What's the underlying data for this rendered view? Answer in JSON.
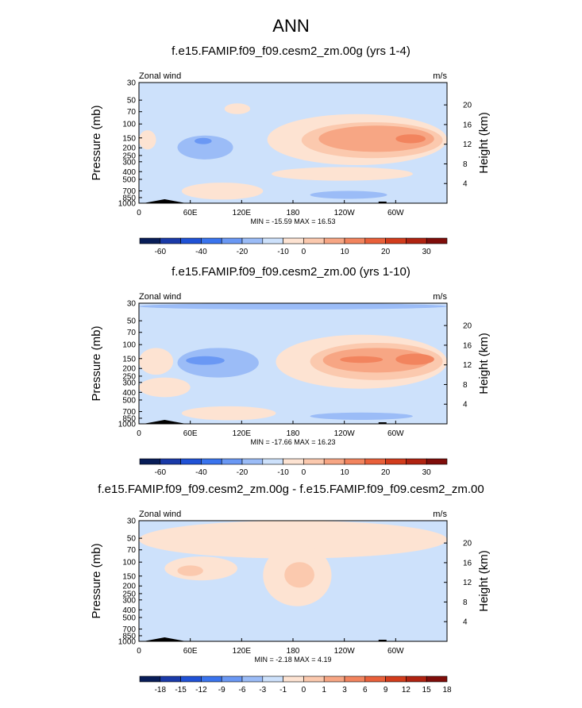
{
  "page_title": "ANN",
  "colors": {
    "neg": [
      "#081d58",
      "#1a3aa8",
      "#2052d6",
      "#3a74ee",
      "#6a98f4",
      "#9bbcf7",
      "#cde1fb"
    ],
    "pos": [
      "#fde3d2",
      "#fbc9ae",
      "#f7a684",
      "#f2845e",
      "#e9603a",
      "#d23c1c",
      "#b02311",
      "#7f0d0a"
    ],
    "land": "#000000"
  },
  "chart_data": [
    {
      "type": "contour",
      "title": "f.e15.FAMIP.f09_f09.cesm2_zm.00g (yrs 1-4)",
      "left_label": "Zonal wind",
      "right_label": "m/s",
      "ylabel": "Pressure (mb)",
      "y2label": "Height (km)",
      "y_ticks": [
        "30",
        "50",
        "70",
        "100",
        "150",
        "200",
        "250",
        "300",
        "400",
        "500",
        "700",
        "850",
        "1000"
      ],
      "y_tick_values": [
        30,
        50,
        70,
        100,
        150,
        200,
        250,
        300,
        400,
        500,
        700,
        850,
        1000
      ],
      "y2_ticks": [
        "20",
        "16",
        "12",
        "8",
        "4"
      ],
      "y2_tick_values": [
        20,
        16,
        12,
        8,
        4
      ],
      "x_ticks": [
        "0",
        "60E",
        "120E",
        "180",
        "120W",
        "60W"
      ],
      "x_tick_values": [
        0,
        60,
        120,
        180,
        240,
        300
      ],
      "xlim": [
        0,
        360
      ],
      "ylim": [
        1000,
        30
      ],
      "stats": "MIN = -15.59  MAX =  16.53",
      "colorbar_labels": [
        "-60",
        "-40",
        "-20",
        "-10",
        "0",
        "10",
        "20",
        "30"
      ],
      "colorbar_label_index": [
        1,
        3,
        5,
        7,
        8,
        10,
        12,
        14
      ],
      "fields": [
        {
          "sign": "pos",
          "level": 1,
          "lon": [
            0,
            20
          ],
          "p": [
            120,
            210
          ]
        },
        {
          "sign": "pos",
          "level": 1,
          "lon": [
            150,
            360
          ],
          "p": [
            75,
            330
          ]
        },
        {
          "sign": "pos",
          "level": 2,
          "lon": [
            190,
            355
          ],
          "p": [
            95,
            270
          ]
        },
        {
          "sign": "pos",
          "level": 3,
          "lon": [
            210,
            345
          ],
          "p": [
            105,
            225
          ]
        },
        {
          "sign": "pos",
          "level": 4,
          "lon": [
            300,
            335
          ],
          "p": [
            135,
            175
          ]
        },
        {
          "sign": "pos",
          "level": 1,
          "lon": [
            50,
            145
          ],
          "p": [
            550,
            900
          ]
        },
        {
          "sign": "pos",
          "level": 1,
          "lon": [
            155,
            320
          ],
          "p": [
            350,
            520
          ]
        },
        {
          "sign": "neg",
          "level": 2,
          "lon": [
            45,
            110
          ],
          "p": [
            140,
            280
          ]
        },
        {
          "sign": "neg",
          "level": 3,
          "lon": [
            65,
            85
          ],
          "p": [
            150,
            180
          ]
        },
        {
          "sign": "neg",
          "level": 2,
          "lon": [
            200,
            290
          ],
          "p": [
            700,
            880
          ]
        },
        {
          "sign": "pos",
          "level": 1,
          "lon": [
            100,
            130
          ],
          "p": [
            55,
            75
          ]
        }
      ]
    },
    {
      "type": "contour",
      "title": "f.e15.FAMIP.f09_f09.cesm2_zm.00 (yrs 1-10)",
      "left_label": "Zonal wind",
      "right_label": "m/s",
      "ylabel": "Pressure (mb)",
      "y2label": "Height (km)",
      "y_ticks": [
        "30",
        "50",
        "70",
        "100",
        "150",
        "200",
        "250",
        "300",
        "400",
        "500",
        "700",
        "850",
        "1000"
      ],
      "y_tick_values": [
        30,
        50,
        70,
        100,
        150,
        200,
        250,
        300,
        400,
        500,
        700,
        850,
        1000
      ],
      "y2_ticks": [
        "20",
        "16",
        "12",
        "8",
        "4"
      ],
      "y2_tick_values": [
        20,
        16,
        12,
        8,
        4
      ],
      "x_ticks": [
        "0",
        "60E",
        "120E",
        "180",
        "120W",
        "60W"
      ],
      "x_tick_values": [
        0,
        60,
        120,
        180,
        240,
        300
      ],
      "xlim": [
        0,
        360
      ],
      "ylim": [
        1000,
        30
      ],
      "stats": "MIN = -17.66  MAX =  16.23",
      "colorbar_labels": [
        "-60",
        "-40",
        "-20",
        "-10",
        "0",
        "10",
        "20",
        "30"
      ],
      "colorbar_label_index": [
        1,
        3,
        5,
        7,
        8,
        10,
        12,
        14
      ],
      "fields": [
        {
          "sign": "neg",
          "level": 2,
          "lon": [
            0,
            360
          ],
          "p": [
            30,
            36
          ]
        },
        {
          "sign": "pos",
          "level": 1,
          "lon": [
            0,
            40
          ],
          "p": [
            110,
            240
          ]
        },
        {
          "sign": "pos",
          "level": 1,
          "lon": [
            160,
            360
          ],
          "p": [
            75,
            360
          ]
        },
        {
          "sign": "pos",
          "level": 2,
          "lon": [
            200,
            355
          ],
          "p": [
            95,
            280
          ]
        },
        {
          "sign": "pos",
          "level": 3,
          "lon": [
            215,
            340
          ],
          "p": [
            110,
            225
          ]
        },
        {
          "sign": "pos",
          "level": 4,
          "lon": [
            235,
            285
          ],
          "p": [
            140,
            170
          ]
        },
        {
          "sign": "pos",
          "level": 4,
          "lon": [
            300,
            345
          ],
          "p": [
            130,
            180
          ]
        },
        {
          "sign": "neg",
          "level": 2,
          "lon": [
            45,
            140
          ],
          "p": [
            110,
            260
          ]
        },
        {
          "sign": "neg",
          "level": 3,
          "lon": [
            55,
            100
          ],
          "p": [
            140,
            180
          ]
        },
        {
          "sign": "pos",
          "level": 1,
          "lon": [
            0,
            60
          ],
          "p": [
            260,
            460
          ]
        },
        {
          "sign": "pos",
          "level": 1,
          "lon": [
            50,
            160
          ],
          "p": [
            600,
            900
          ]
        },
        {
          "sign": "neg",
          "level": 2,
          "lon": [
            200,
            320
          ],
          "p": [
            720,
            890
          ]
        }
      ]
    },
    {
      "type": "contour",
      "title": "f.e15.FAMIP.f09_f09.cesm2_zm.00g - f.e15.FAMIP.f09_f09.cesm2_zm.00",
      "left_label": "Zonal wind",
      "right_label": "m/s",
      "ylabel": "Pressure (mb)",
      "y2label": "Height (km)",
      "y_ticks": [
        "30",
        "50",
        "70",
        "100",
        "150",
        "200",
        "250",
        "300",
        "400",
        "500",
        "700",
        "850",
        "1000"
      ],
      "y_tick_values": [
        30,
        50,
        70,
        100,
        150,
        200,
        250,
        300,
        400,
        500,
        700,
        850,
        1000
      ],
      "y2_ticks": [
        "20",
        "16",
        "12",
        "8",
        "4"
      ],
      "y2_tick_values": [
        20,
        16,
        12,
        8,
        4
      ],
      "x_ticks": [
        "0",
        "60E",
        "120E",
        "180",
        "120W",
        "60W"
      ],
      "x_tick_values": [
        0,
        60,
        120,
        180,
        240,
        300
      ],
      "xlim": [
        0,
        360
      ],
      "ylim": [
        1000,
        30
      ],
      "stats": "MIN = -2.18  MAX =  4.19",
      "colorbar_labels": [
        "-18",
        "-15",
        "-12",
        "-9",
        "-6",
        "-3",
        "-1",
        "0",
        "1",
        "3",
        "6",
        "9",
        "12",
        "15",
        "18"
      ],
      "colorbar_label_index": [
        1,
        2,
        3,
        4,
        5,
        6,
        7,
        8,
        9,
        10,
        11,
        12,
        13,
        14,
        15
      ],
      "fields": [
        {
          "sign": "pos",
          "level": 1,
          "lon": [
            0,
            360
          ],
          "p": [
            30,
            90
          ]
        },
        {
          "sign": "pos",
          "level": 1,
          "lon": [
            30,
            115
          ],
          "p": [
            85,
            170
          ]
        },
        {
          "sign": "pos",
          "level": 2,
          "lon": [
            45,
            75
          ],
          "p": [
            110,
            150
          ]
        },
        {
          "sign": "pos",
          "level": 1,
          "lon": [
            145,
            225
          ],
          "p": [
            60,
            360
          ]
        },
        {
          "sign": "pos",
          "level": 2,
          "lon": [
            170,
            205
          ],
          "p": [
            100,
            210
          ]
        },
        {
          "sign": "neg",
          "level": 1,
          "lon": [
            10,
            55
          ],
          "p": [
            180,
            420
          ]
        },
        {
          "sign": "neg",
          "level": 1,
          "lon": [
            235,
            275
          ],
          "p": [
            160,
            470
          ]
        },
        {
          "sign": "neg",
          "level": 1,
          "lon": [
            310,
            345
          ],
          "p": [
            180,
            450
          ]
        },
        {
          "sign": "neg",
          "level": 1,
          "lon": [
            80,
            150
          ],
          "p": [
            420,
            620
          ]
        },
        {
          "sign": "neg",
          "level": 1,
          "lon": [
            0,
            90
          ],
          "p": [
            700,
            900
          ]
        },
        {
          "sign": "neg",
          "level": 1,
          "lon": [
            250,
            310
          ],
          "p": [
            720,
            890
          ]
        }
      ]
    }
  ]
}
